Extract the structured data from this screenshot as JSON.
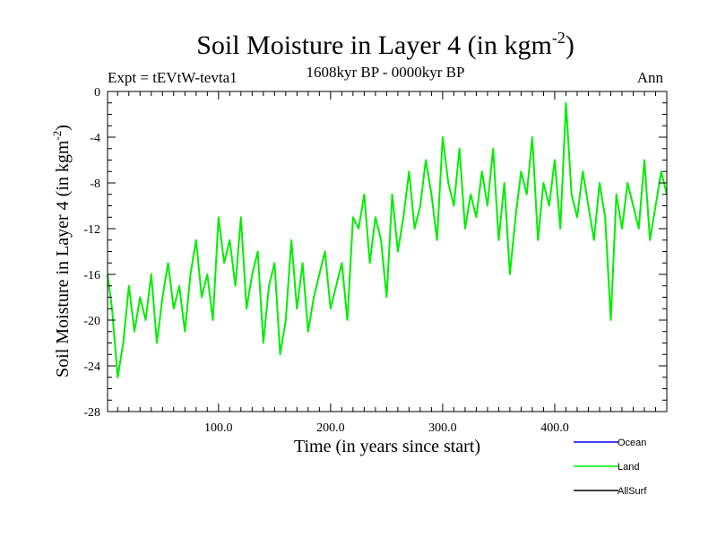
{
  "chart_data": {
    "type": "line",
    "title_main": "Soil Moisture in Layer 4 (in kgm",
    "title_sup": "-2",
    "title_close": ")",
    "subtitle": "1608kyr BP - 0000kyr BP",
    "expt_label": "Expt = tEVtW-tevta1",
    "period_label": "Ann",
    "xlabel": "Time (in years since start)",
    "ylabel_main": "Soil Moisture in Layer 4 (in kgm",
    "ylabel_sup": "-2",
    "ylabel_close": ")",
    "xlim": [
      1,
      500
    ],
    "ylim": [
      -28,
      0
    ],
    "x_ticks": [
      100,
      200,
      300,
      400
    ],
    "x_tick_labels": [
      "100.0",
      "200.0",
      "300.0",
      "400.0"
    ],
    "y_ticks": [
      0,
      -4,
      -8,
      -12,
      -16,
      -20,
      -24,
      -28
    ],
    "y_tick_labels": [
      "0",
      "-4",
      "-8",
      "-12",
      "-16",
      "-20",
      "-24",
      "-28"
    ],
    "legend": [
      {
        "name": "Ocean",
        "color": "#0000ff"
      },
      {
        "name": "Land",
        "color": "#00ee00"
      },
      {
        "name": "AllSurf",
        "color": "#000000"
      }
    ],
    "series": [
      {
        "name": "Land",
        "color": "#00ee00",
        "x": [
          1,
          5,
          10,
          15,
          20,
          25,
          30,
          35,
          40,
          45,
          50,
          55,
          60,
          65,
          70,
          75,
          80,
          85,
          90,
          95,
          100,
          105,
          110,
          115,
          120,
          125,
          130,
          135,
          140,
          145,
          150,
          155,
          160,
          165,
          170,
          175,
          180,
          185,
          190,
          195,
          200,
          205,
          210,
          215,
          220,
          225,
          230,
          235,
          240,
          245,
          250,
          255,
          260,
          265,
          270,
          275,
          280,
          285,
          290,
          295,
          300,
          305,
          310,
          315,
          320,
          325,
          330,
          335,
          340,
          345,
          350,
          355,
          360,
          365,
          370,
          375,
          380,
          385,
          390,
          395,
          400,
          405,
          410,
          415,
          420,
          425,
          430,
          435,
          440,
          445,
          450,
          455,
          460,
          465,
          470,
          475,
          480,
          485,
          490,
          495,
          500
        ],
        "values": [
          -16,
          -19,
          -25,
          -22,
          -17,
          -21,
          -18,
          -20,
          -16,
          -22,
          -18,
          -15,
          -19,
          -17,
          -21,
          -16,
          -13,
          -18,
          -16,
          -20,
          -11,
          -15,
          -13,
          -17,
          -11,
          -19,
          -16,
          -14,
          -22,
          -17,
          -15,
          -23,
          -20,
          -13,
          -19,
          -15,
          -21,
          -18,
          -16,
          -14,
          -19,
          -17,
          -15,
          -20,
          -11,
          -12,
          -9,
          -15,
          -11,
          -13,
          -18,
          -9,
          -14,
          -11,
          -7,
          -12,
          -10,
          -6,
          -9,
          -13,
          -4,
          -8,
          -10,
          -5,
          -12,
          -9,
          -11,
          -7,
          -10,
          -5,
          -13,
          -8,
          -16,
          -11,
          -7,
          -9,
          -4,
          -13,
          -8,
          -10,
          -6,
          -12,
          -1,
          -9,
          -11,
          -7,
          -10,
          -13,
          -8,
          -11,
          -20,
          -9,
          -12,
          -8,
          -10,
          -12,
          -6,
          -13,
          -10,
          -7,
          -9
        ]
      }
    ]
  }
}
